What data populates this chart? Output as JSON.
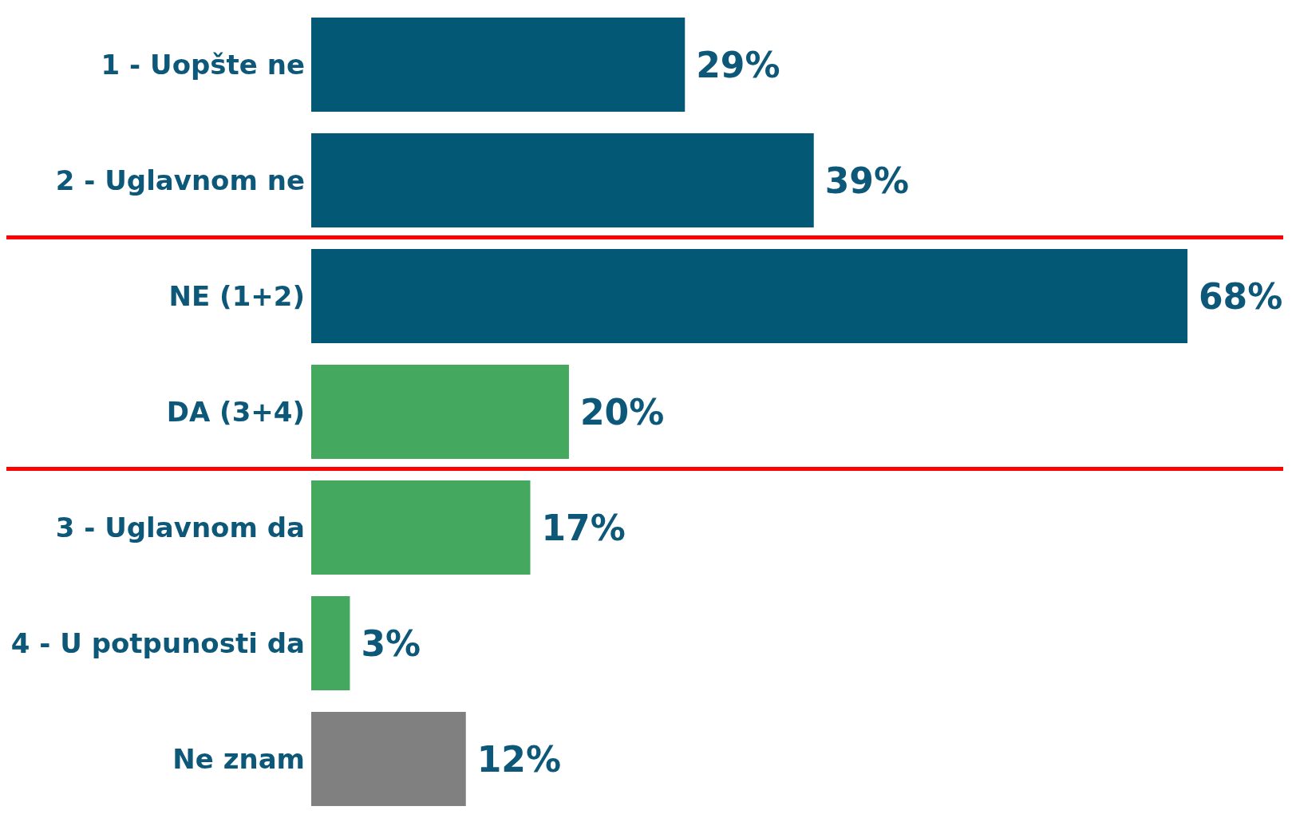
{
  "chart_data": {
    "type": "bar",
    "orientation": "horizontal",
    "categories": [
      "1 - Uopšte ne",
      "2 - Uglavnom ne",
      "NE (1+2)",
      "DA (3+4)",
      "3 - Uglavnom da",
      "4 - U potpunosti da",
      "Ne znam"
    ],
    "values": [
      29,
      39,
      68,
      20,
      17,
      3,
      12
    ],
    "value_labels": [
      "29%",
      "39%",
      "68%",
      "20%",
      "17%",
      "3%",
      "12%"
    ],
    "colors": [
      "#035875",
      "#035875",
      "#035875",
      "#45a85f",
      "#45a85f",
      "#45a85f",
      "#808080"
    ]
  }
}
